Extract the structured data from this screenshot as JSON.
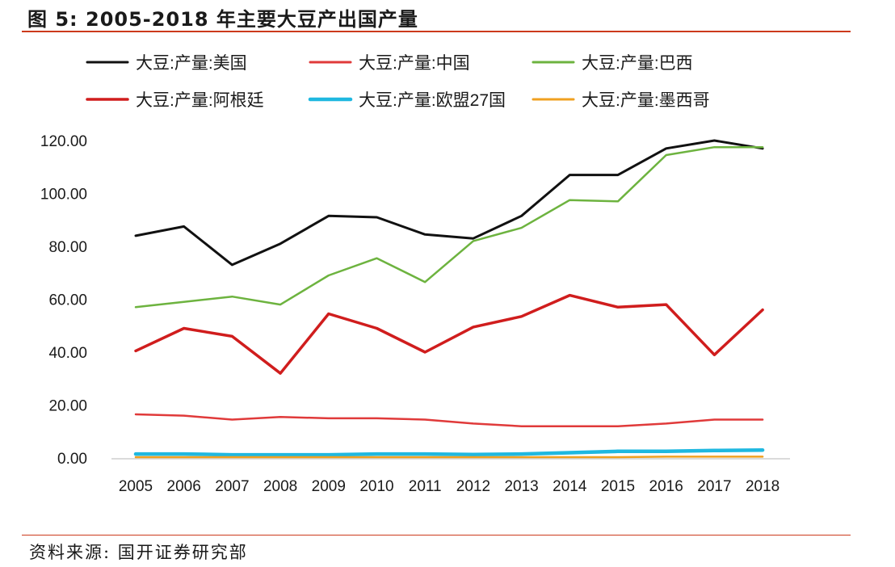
{
  "figure": {
    "title": "图 5:  2005-2018 年主要大豆产出国产量",
    "source": "资料来源:  国开证券研究部"
  },
  "chart_data": {
    "type": "line",
    "title": "",
    "xlabel": "",
    "ylabel": "",
    "x": [
      "2005",
      "2006",
      "2007",
      "2008",
      "2009",
      "2010",
      "2011",
      "2012",
      "2013",
      "2014",
      "2015",
      "2016",
      "2017",
      "2018"
    ],
    "ylim": [
      0,
      120
    ],
    "yticks": [
      "0.00",
      "20.00",
      "40.00",
      "60.00",
      "80.00",
      "100.00",
      "120.00"
    ],
    "grid": false,
    "legend_position": "top",
    "series": [
      {
        "name": "大豆:产量:美国",
        "color": "#111111",
        "width": 3,
        "values": [
          84,
          87.5,
          73,
          81,
          91.5,
          91,
          84.5,
          83,
          91.5,
          107,
          107,
          117,
          120,
          117
        ]
      },
      {
        "name": "大豆:产量:中国",
        "color": "#e03a3a",
        "width": 2.5,
        "values": [
          16.5,
          16,
          14.5,
          15.5,
          15,
          15,
          14.5,
          13,
          12,
          12,
          12,
          13,
          14.5,
          14.5
        ]
      },
      {
        "name": "大豆:产量:巴西",
        "color": "#6db33f",
        "width": 2.5,
        "values": [
          57,
          59,
          61,
          58,
          69,
          75.5,
          66.5,
          82,
          87,
          97.5,
          97,
          114.5,
          117.5,
          117.5
        ]
      },
      {
        "name": "大豆:产量:阿根廷",
        "color": "#d01d1d",
        "width": 3.5,
        "values": [
          40.5,
          49,
          46,
          32,
          54.5,
          49,
          40,
          49.5,
          53.5,
          61.5,
          57,
          58,
          39,
          56
        ]
      },
      {
        "name": "大豆:产量:欧盟27国",
        "color": "#1fb8e0",
        "width": 4.5,
        "values": [
          1.5,
          1.5,
          1.2,
          1.2,
          1.2,
          1.5,
          1.5,
          1.3,
          1.5,
          2,
          2.5,
          2.5,
          2.8,
          3
        ]
      },
      {
        "name": "大豆:产量:墨西哥",
        "color": "#f0a020",
        "width": 2.5,
        "values": [
          0.3,
          0.3,
          0.3,
          0.3,
          0.3,
          0.3,
          0.3,
          0.3,
          0.3,
          0.3,
          0.3,
          0.5,
          0.5,
          0.5
        ]
      }
    ]
  }
}
